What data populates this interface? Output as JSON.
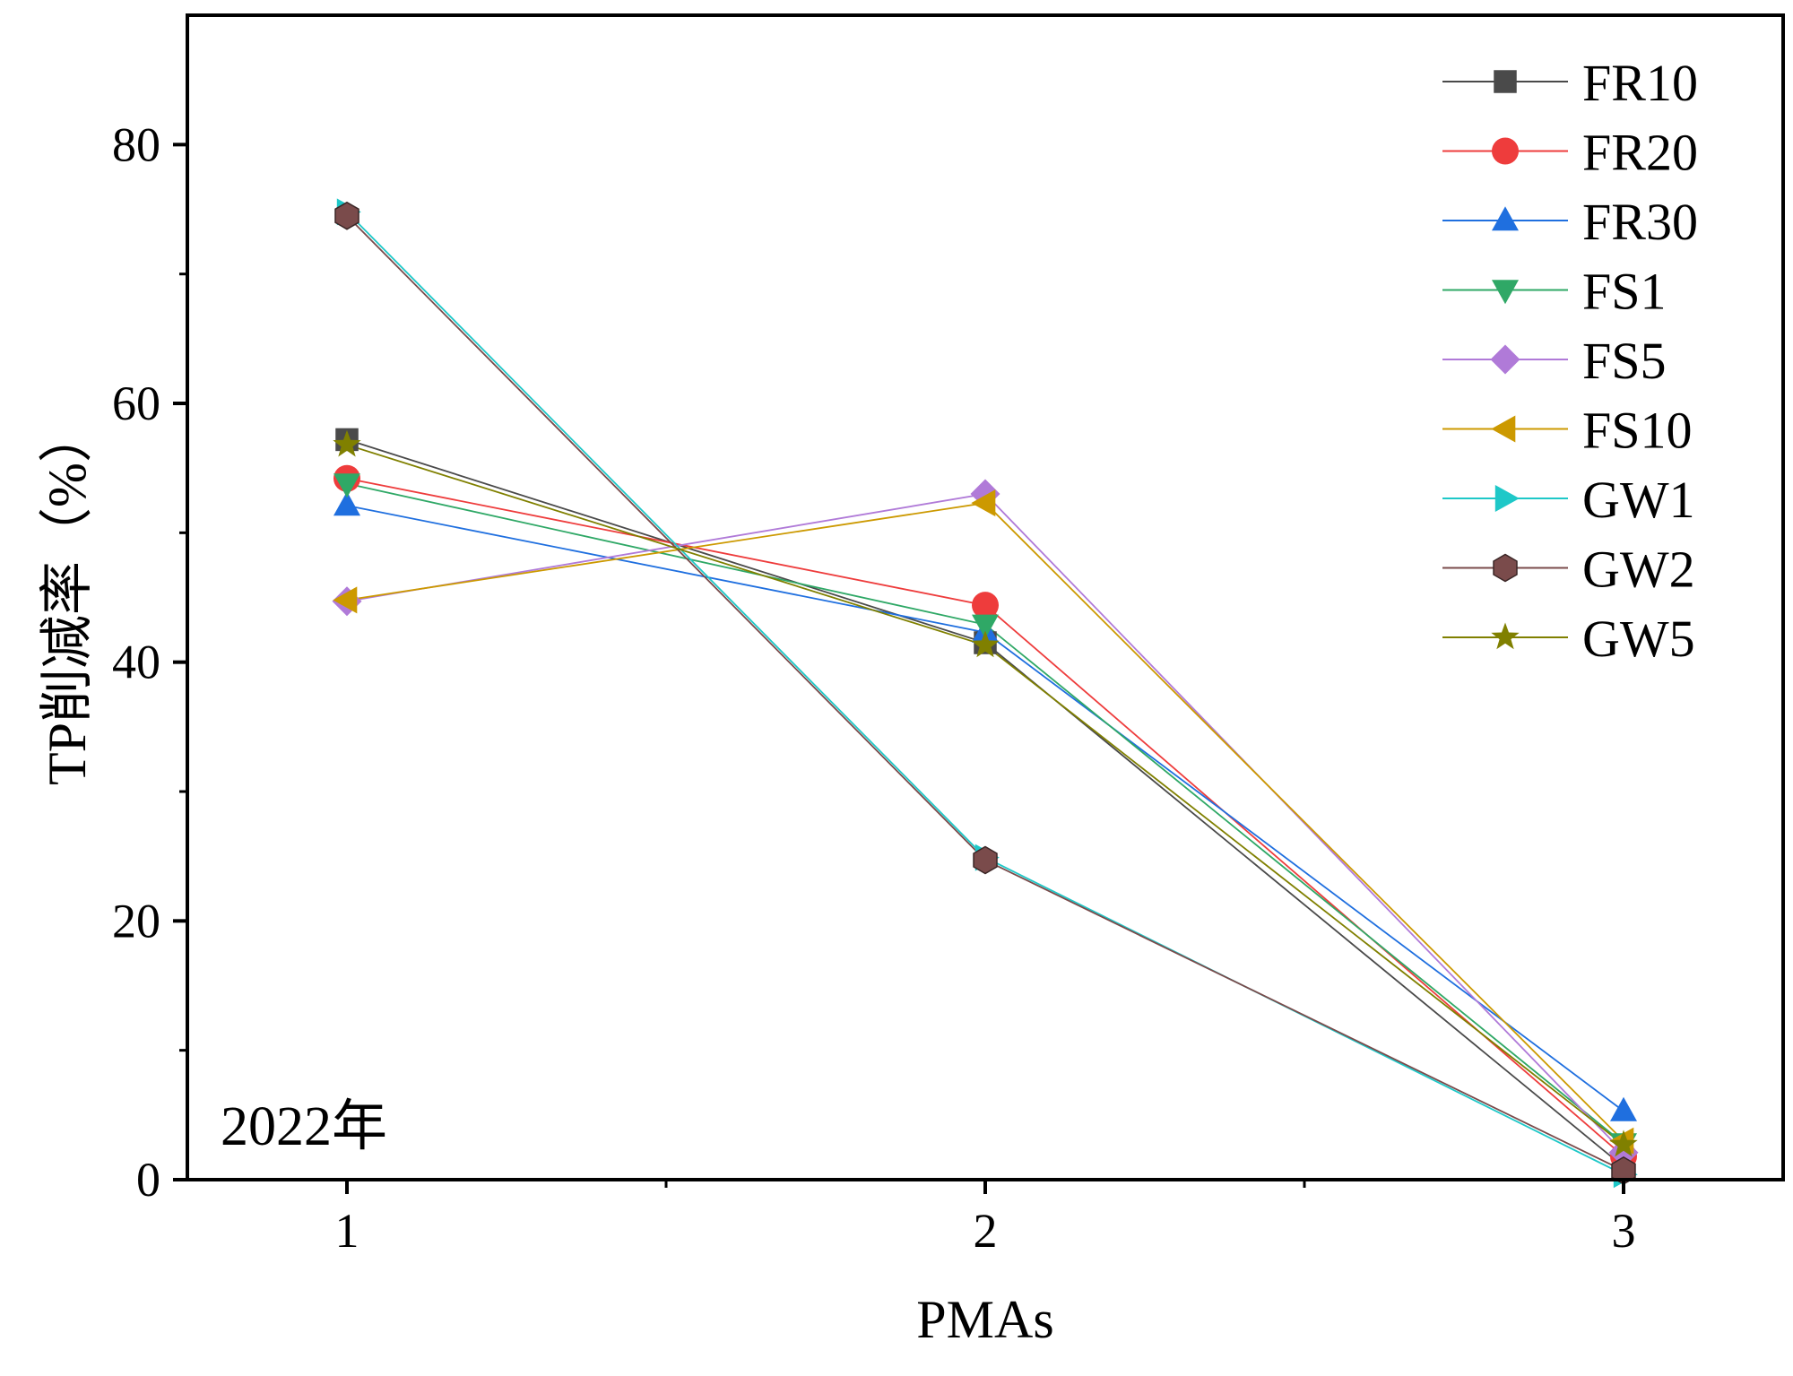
{
  "chart_data": {
    "type": "line",
    "title": "",
    "xlabel": "PMAs",
    "ylabel": "TP削减率（%）",
    "x": [
      1,
      2,
      3
    ],
    "xticks": [
      "1",
      "2",
      "3"
    ],
    "xlim": [
      0.75,
      3.25
    ],
    "ylim": [
      0,
      90
    ],
    "yticks": [
      0,
      20,
      40,
      60,
      80
    ],
    "yticks_labels": [
      "0",
      "20",
      "40",
      "60",
      "80"
    ],
    "annotation": "2022年",
    "legend_position": "top-right",
    "grid": false,
    "series": [
      {
        "name": "FR10",
        "marker": "square",
        "color": "#4a4a4a",
        "values": [
          57.2,
          41.5,
          1.0
        ]
      },
      {
        "name": "FR20",
        "marker": "circle",
        "color": "#ee3c3c",
        "values": [
          54.2,
          44.4,
          1.8
        ]
      },
      {
        "name": "FR30",
        "marker": "triangle-up",
        "color": "#1f6fdf",
        "values": [
          52.1,
          42.3,
          5.3
        ]
      },
      {
        "name": "FS1",
        "marker": "triangle-down",
        "color": "#2fa866",
        "values": [
          53.8,
          42.9,
          2.8
        ]
      },
      {
        "name": "FS5",
        "marker": "diamond",
        "color": "#b07ad8",
        "values": [
          44.7,
          53.0,
          2.1
        ]
      },
      {
        "name": "FS10",
        "marker": "triangle-left",
        "color": "#cc9900",
        "values": [
          44.8,
          52.3,
          3.0
        ]
      },
      {
        "name": "GW1",
        "marker": "triangle-right",
        "color": "#1ec8c8",
        "values": [
          74.8,
          24.9,
          0.4
        ]
      },
      {
        "name": "GW2",
        "marker": "hexagon",
        "color": "#7a4b4b",
        "values": [
          74.5,
          24.7,
          0.7
        ]
      },
      {
        "name": "GW5",
        "marker": "star",
        "color": "#808000",
        "values": [
          56.8,
          41.3,
          2.7
        ]
      }
    ]
  }
}
